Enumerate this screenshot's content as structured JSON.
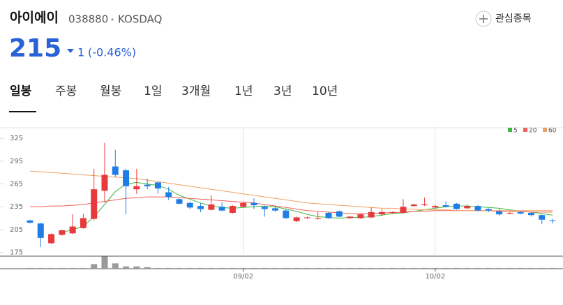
{
  "header": {
    "name": "아이에이",
    "code": "038880",
    "market": "KOSDAQ",
    "watch": "관심종목"
  },
  "quote": {
    "price": 215,
    "change": 1,
    "change_pct": "(-0.46%)"
  },
  "tabs": [
    "일봉",
    "주봉",
    "월봉",
    "1일",
    "3개월",
    "1년",
    "3년",
    "10년"
  ],
  "chart_data": {
    "type": "candlestick",
    "categories": [
      null,
      null,
      null,
      null,
      null,
      null,
      null,
      null,
      null,
      null,
      null,
      null,
      null,
      null,
      null,
      null,
      null,
      null,
      null,
      null,
      "09/02",
      null,
      null,
      null,
      null,
      null,
      null,
      null,
      null,
      null,
      null,
      null,
      null,
      null,
      null,
      null,
      null,
      null,
      "10/02",
      null,
      null,
      null,
      null,
      null,
      null,
      null,
      null,
      null,
      null,
      null
    ],
    "open": [
      217,
      213,
      187,
      198,
      200,
      207,
      219,
      256,
      288,
      283,
      258,
      264,
      267,
      254,
      245,
      240,
      236,
      231,
      235,
      227,
      235,
      240,
      235,
      233,
      230,
      216,
      220,
      219,
      227,
      229,
      220,
      220,
      221,
      225,
      227,
      227,
      236,
      237,
      234,
      237,
      239,
      233,
      236,
      232,
      229,
      226,
      228,
      227,
      224,
      217
    ],
    "high": [
      218,
      214,
      200,
      205,
      225,
      226,
      285,
      319,
      310,
      285,
      285,
      272,
      268,
      261,
      246,
      242,
      240,
      250,
      241,
      237,
      242,
      246,
      236,
      236,
      232,
      222,
      222,
      228,
      228,
      230,
      223,
      226,
      234,
      232,
      229,
      245,
      239,
      247,
      238,
      242,
      240,
      238,
      237,
      233,
      232,
      228,
      229,
      228,
      225,
      219
    ],
    "low": [
      213,
      182,
      186,
      197,
      199,
      206,
      217,
      241,
      274,
      225,
      252,
      258,
      252,
      244,
      238,
      232,
      228,
      230,
      229,
      226,
      234,
      232,
      222,
      228,
      219,
      215,
      219,
      218,
      219,
      221,
      219,
      219,
      220,
      223,
      226,
      226,
      235,
      236,
      233,
      234,
      231,
      232,
      229,
      228,
      223,
      225,
      225,
      222,
      212,
      213
    ],
    "close": [
      214,
      194,
      199,
      204,
      209,
      220,
      258,
      277,
      277,
      262,
      262,
      262,
      259,
      248,
      239,
      234,
      232,
      238,
      230,
      236,
      240,
      237,
      232,
      230,
      220,
      221,
      221,
      220,
      220,
      222,
      222,
      225,
      228,
      228,
      228,
      235,
      238,
      238,
      236,
      235,
      232,
      236,
      230,
      230,
      225,
      227,
      226,
      224,
      218,
      216
    ],
    "volume": [
      1,
      1,
      1,
      1,
      1,
      1,
      6,
      16,
      7,
      3,
      3,
      2,
      1,
      1,
      1,
      1,
      1,
      1,
      1,
      1,
      1,
      1,
      1,
      1,
      1,
      1,
      1,
      1,
      1,
      1,
      1,
      1,
      1,
      1,
      1,
      1,
      1,
      1,
      1,
      1,
      1,
      1,
      1,
      1,
      1,
      1,
      1,
      1,
      1,
      1
    ],
    "vlim": [
      0,
      16.5
    ],
    "series": [
      {
        "name": "5",
        "color": "#3cb83c",
        "values": [
          null,
          null,
          null,
          201,
          205,
          209,
          222,
          238,
          255,
          265,
          267,
          265,
          263,
          258,
          250,
          245,
          240,
          236,
          234,
          233,
          234,
          235,
          236,
          235,
          232,
          229,
          225,
          222,
          221,
          220,
          221,
          221,
          222,
          224,
          226,
          227,
          229,
          231,
          233,
          235,
          236,
          236,
          235,
          234,
          233,
          231,
          229,
          228,
          226,
          224
        ]
      },
      {
        "name": "20",
        "color": "#f0605a",
        "values": [
          235,
          235,
          236,
          236,
          237,
          238,
          240,
          242,
          244,
          246,
          247,
          248,
          248,
          248,
          247,
          246,
          245,
          244,
          243,
          242,
          241,
          240,
          238,
          236,
          234,
          232,
          230,
          229,
          228,
          227,
          226,
          226,
          226,
          227,
          227,
          228,
          229,
          229,
          230,
          230,
          230,
          230,
          230,
          230,
          229,
          229,
          229,
          228,
          228,
          228
        ]
      },
      {
        "name": "60",
        "color": "#f0a060",
        "values": [
          282,
          281,
          280,
          279,
          278,
          277,
          276,
          275,
          274,
          273,
          272,
          270,
          268,
          266,
          264,
          262,
          260,
          258,
          256,
          254,
          252,
          250,
          248,
          246,
          244,
          242,
          240,
          239,
          238,
          237,
          236,
          235,
          234,
          233,
          233,
          232,
          232,
          231,
          231,
          231,
          230,
          230,
          230,
          230,
          230,
          230,
          230,
          230,
          230,
          230
        ]
      }
    ],
    "up_color": "#e8393c",
    "down_color": "#1f7ee6",
    "volume_color": "#9a9a9a",
    "ylim": [
      170,
      339
    ],
    "yticks": [
      175,
      205,
      235,
      265,
      295,
      325
    ]
  }
}
